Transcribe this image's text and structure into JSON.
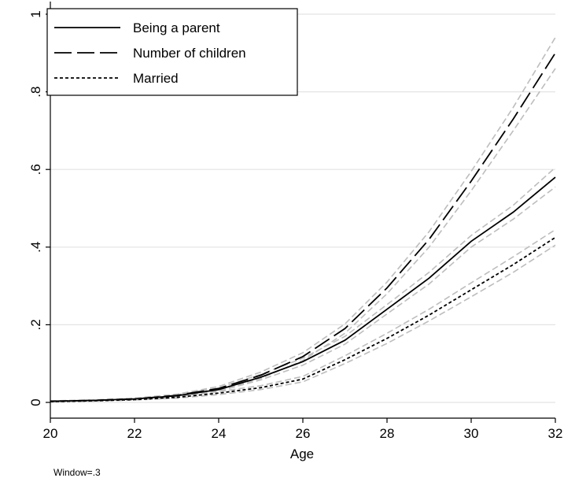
{
  "chart_data": {
    "type": "line",
    "xlabel": "Age",
    "ylabel": "",
    "xlim": [
      20,
      32
    ],
    "ylim": [
      0,
      1
    ],
    "x_ticks": [
      20,
      22,
      24,
      26,
      28,
      30,
      32
    ],
    "y_ticks": [
      0,
      0.2,
      0.4,
      0.6,
      0.8,
      1
    ],
    "y_tick_labels": [
      "0",
      ".2",
      ".4",
      ".6",
      ".8",
      "1"
    ],
    "grid": "horizontal",
    "legend_position": "top-left",
    "note": "Window=.3",
    "series": [
      {
        "name": "Being a parent",
        "style": "solid",
        "x": [
          20,
          21,
          22,
          23,
          24,
          25,
          26,
          27,
          28,
          29,
          30,
          31,
          32
        ],
        "y": [
          0.003,
          0.005,
          0.009,
          0.017,
          0.033,
          0.065,
          0.105,
          0.16,
          0.24,
          0.32,
          0.415,
          0.49,
          0.58
        ],
        "ci_lower": [
          0.002,
          0.004,
          0.007,
          0.014,
          0.029,
          0.058,
          0.096,
          0.15,
          0.228,
          0.305,
          0.4,
          0.472,
          0.555
        ],
        "ci_upper": [
          0.004,
          0.006,
          0.011,
          0.02,
          0.037,
          0.072,
          0.114,
          0.17,
          0.252,
          0.335,
          0.43,
          0.508,
          0.605
        ]
      },
      {
        "name": "Number of children",
        "style": "long-dash",
        "x": [
          20,
          21,
          22,
          23,
          24,
          25,
          26,
          27,
          28,
          29,
          30,
          31,
          32
        ],
        "y": [
          0.003,
          0.005,
          0.009,
          0.018,
          0.036,
          0.07,
          0.118,
          0.19,
          0.295,
          0.42,
          0.57,
          0.73,
          0.9
        ],
        "ci_lower": [
          0.002,
          0.004,
          0.007,
          0.015,
          0.031,
          0.062,
          0.108,
          0.178,
          0.28,
          0.4,
          0.545,
          0.7,
          0.86
        ],
        "ci_upper": [
          0.004,
          0.006,
          0.011,
          0.021,
          0.041,
          0.078,
          0.128,
          0.202,
          0.31,
          0.44,
          0.595,
          0.76,
          0.94
        ]
      },
      {
        "name": "Married",
        "style": "dotted",
        "x": [
          20,
          21,
          22,
          23,
          24,
          25,
          26,
          27,
          28,
          29,
          30,
          31,
          32
        ],
        "y": [
          0.002,
          0.004,
          0.007,
          0.013,
          0.024,
          0.038,
          0.06,
          0.11,
          0.165,
          0.225,
          0.29,
          0.355,
          0.425
        ],
        "ci_lower": [
          0.001,
          0.003,
          0.006,
          0.011,
          0.02,
          0.033,
          0.053,
          0.1,
          0.152,
          0.21,
          0.272,
          0.335,
          0.405
        ],
        "ci_upper": [
          0.003,
          0.005,
          0.008,
          0.015,
          0.028,
          0.043,
          0.067,
          0.12,
          0.178,
          0.24,
          0.308,
          0.375,
          0.445
        ]
      }
    ]
  },
  "colors": {
    "line": "#000000",
    "ci": "#bdbdbd",
    "grid": "#e3e3e3",
    "axis": "#000000",
    "background": "#ffffff"
  }
}
